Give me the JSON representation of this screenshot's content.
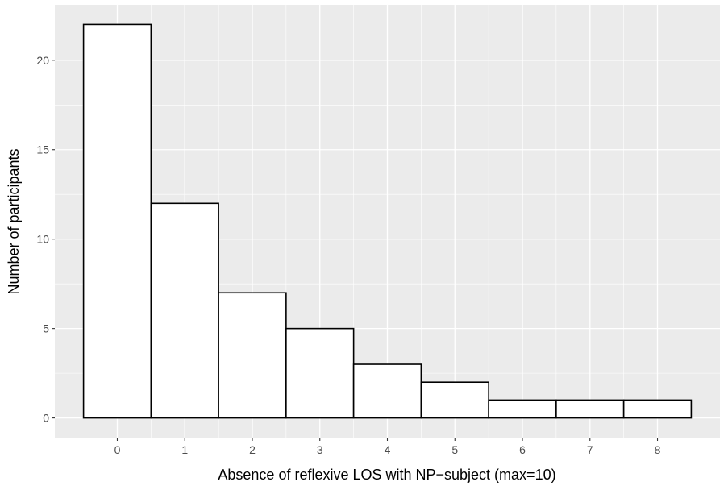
{
  "chart_data": {
    "type": "bar",
    "subtype": "histogram",
    "title": "",
    "xlabel": "Absence of reflexive LOS with NP−subject (max=10)",
    "ylabel": "Number of participants",
    "categories": [
      "0",
      "1",
      "2",
      "3",
      "4",
      "5",
      "6",
      "7",
      "8"
    ],
    "values": [
      22,
      12,
      7,
      5,
      3,
      2,
      1,
      1,
      1
    ],
    "xticks": [
      "0",
      "1",
      "2",
      "3",
      "4",
      "5",
      "6",
      "7",
      "8"
    ],
    "yticks": [
      "0",
      "5",
      "10",
      "15",
      "20"
    ],
    "xlim": [
      -0.925,
      8.925
    ],
    "ylim": [
      -1.1,
      23.1
    ],
    "grid": true,
    "legend": "none",
    "colors": {
      "panel_background": "#ebebeb",
      "grid_major": "#ffffff",
      "bar_fill": "#ffffff",
      "bar_outline": "#000000",
      "tick_text": "#4d4d4d",
      "axis_title_text": "#000000"
    }
  }
}
